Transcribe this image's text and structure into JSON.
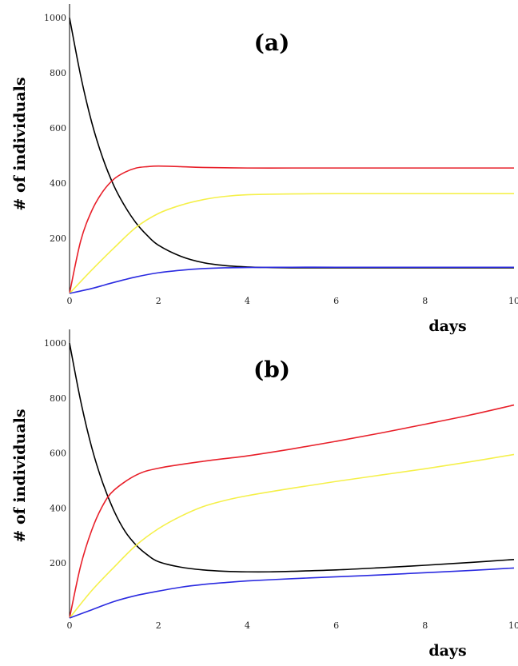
{
  "chart_data": [
    {
      "type": "line",
      "title": "(a)",
      "xlabel": "days",
      "ylabel": "# of individuals",
      "xlim": [
        0,
        10
      ],
      "ylim": [
        0,
        1050
      ],
      "xticks": [
        "0",
        "2",
        "4",
        "6",
        "8",
        "10"
      ],
      "yticks": [
        "200",
        "400",
        "600",
        "800",
        "1000"
      ],
      "grid": false,
      "series": [
        {
          "color": "#000000",
          "x": [
            0,
            0.25,
            0.5,
            0.75,
            1,
            1.25,
            1.5,
            1.75,
            2,
            2.5,
            3,
            3.5,
            4,
            4.5,
            5,
            6,
            7,
            8,
            9,
            10
          ],
          "values": [
            1000,
            790,
            620,
            490,
            390,
            315,
            255,
            210,
            175,
            135,
            112,
            101,
            96,
            94,
            93,
            93,
            93,
            93,
            93,
            93
          ]
        },
        {
          "color": "#e8202a",
          "x": [
            0,
            0.25,
            0.5,
            0.75,
            1,
            1.25,
            1.5,
            1.75,
            2,
            2.5,
            3,
            4,
            5,
            6,
            7,
            8,
            9,
            10
          ],
          "values": [
            0,
            190,
            300,
            370,
            415,
            440,
            455,
            460,
            462,
            460,
            457,
            455,
            455,
            455,
            455,
            455,
            455,
            455
          ]
        },
        {
          "color": "#f5f04a",
          "x": [
            0,
            0.5,
            1,
            1.5,
            2,
            2.5,
            3,
            3.5,
            4,
            5,
            6,
            7,
            8,
            9,
            10
          ],
          "values": [
            0,
            85,
            165,
            240,
            290,
            320,
            340,
            352,
            358,
            361,
            362,
            362,
            362,
            362,
            362
          ]
        },
        {
          "color": "#2a2ae0",
          "x": [
            0,
            0.5,
            1,
            1.5,
            2,
            2.5,
            3,
            3.5,
            4,
            5,
            6,
            7,
            8,
            9,
            10
          ],
          "values": [
            0,
            18,
            40,
            60,
            75,
            84,
            90,
            93,
            94,
            95,
            95,
            95,
            95,
            95,
            95
          ]
        }
      ]
    },
    {
      "type": "line",
      "title": "(b)",
      "xlabel": "days",
      "ylabel": "# of individuals",
      "xlim": [
        0,
        10
      ],
      "ylim": [
        0,
        1050
      ],
      "xticks": [
        "0",
        "2",
        "4",
        "6",
        "8",
        "10"
      ],
      "yticks": [
        "200",
        "400",
        "600",
        "800",
        "1000"
      ],
      "grid": false,
      "series": [
        {
          "color": "#000000",
          "x": [
            0,
            0.25,
            0.5,
            0.75,
            1,
            1.25,
            1.5,
            1.75,
            2,
            2.5,
            3,
            3.5,
            4,
            4.5,
            5,
            6,
            7,
            8,
            9,
            10
          ],
          "values": [
            1000,
            790,
            620,
            490,
            390,
            315,
            265,
            230,
            205,
            185,
            175,
            170,
            168,
            168,
            170,
            175,
            183,
            192,
            202,
            213
          ]
        },
        {
          "color": "#e8202a",
          "x": [
            0,
            0.25,
            0.5,
            0.75,
            1,
            1.5,
            2,
            3,
            4,
            5,
            6,
            7,
            8,
            9,
            10
          ],
          "values": [
            0,
            190,
            320,
            410,
            465,
            520,
            545,
            570,
            590,
            615,
            643,
            673,
            705,
            738,
            775
          ]
        },
        {
          "color": "#f5f04a",
          "x": [
            0,
            0.5,
            1,
            1.5,
            2,
            2.5,
            3,
            3.5,
            4,
            5,
            6,
            7,
            8,
            9,
            10
          ],
          "values": [
            0,
            100,
            185,
            265,
            325,
            370,
            405,
            428,
            445,
            472,
            497,
            520,
            543,
            568,
            595
          ]
        },
        {
          "color": "#2a2ae0",
          "x": [
            0,
            0.5,
            1,
            1.5,
            2,
            2.5,
            3,
            3.5,
            4,
            5,
            6,
            7,
            8,
            9,
            10
          ],
          "values": [
            0,
            30,
            60,
            82,
            98,
            112,
            122,
            129,
            135,
            143,
            150,
            157,
            165,
            173,
            182
          ]
        }
      ]
    }
  ]
}
